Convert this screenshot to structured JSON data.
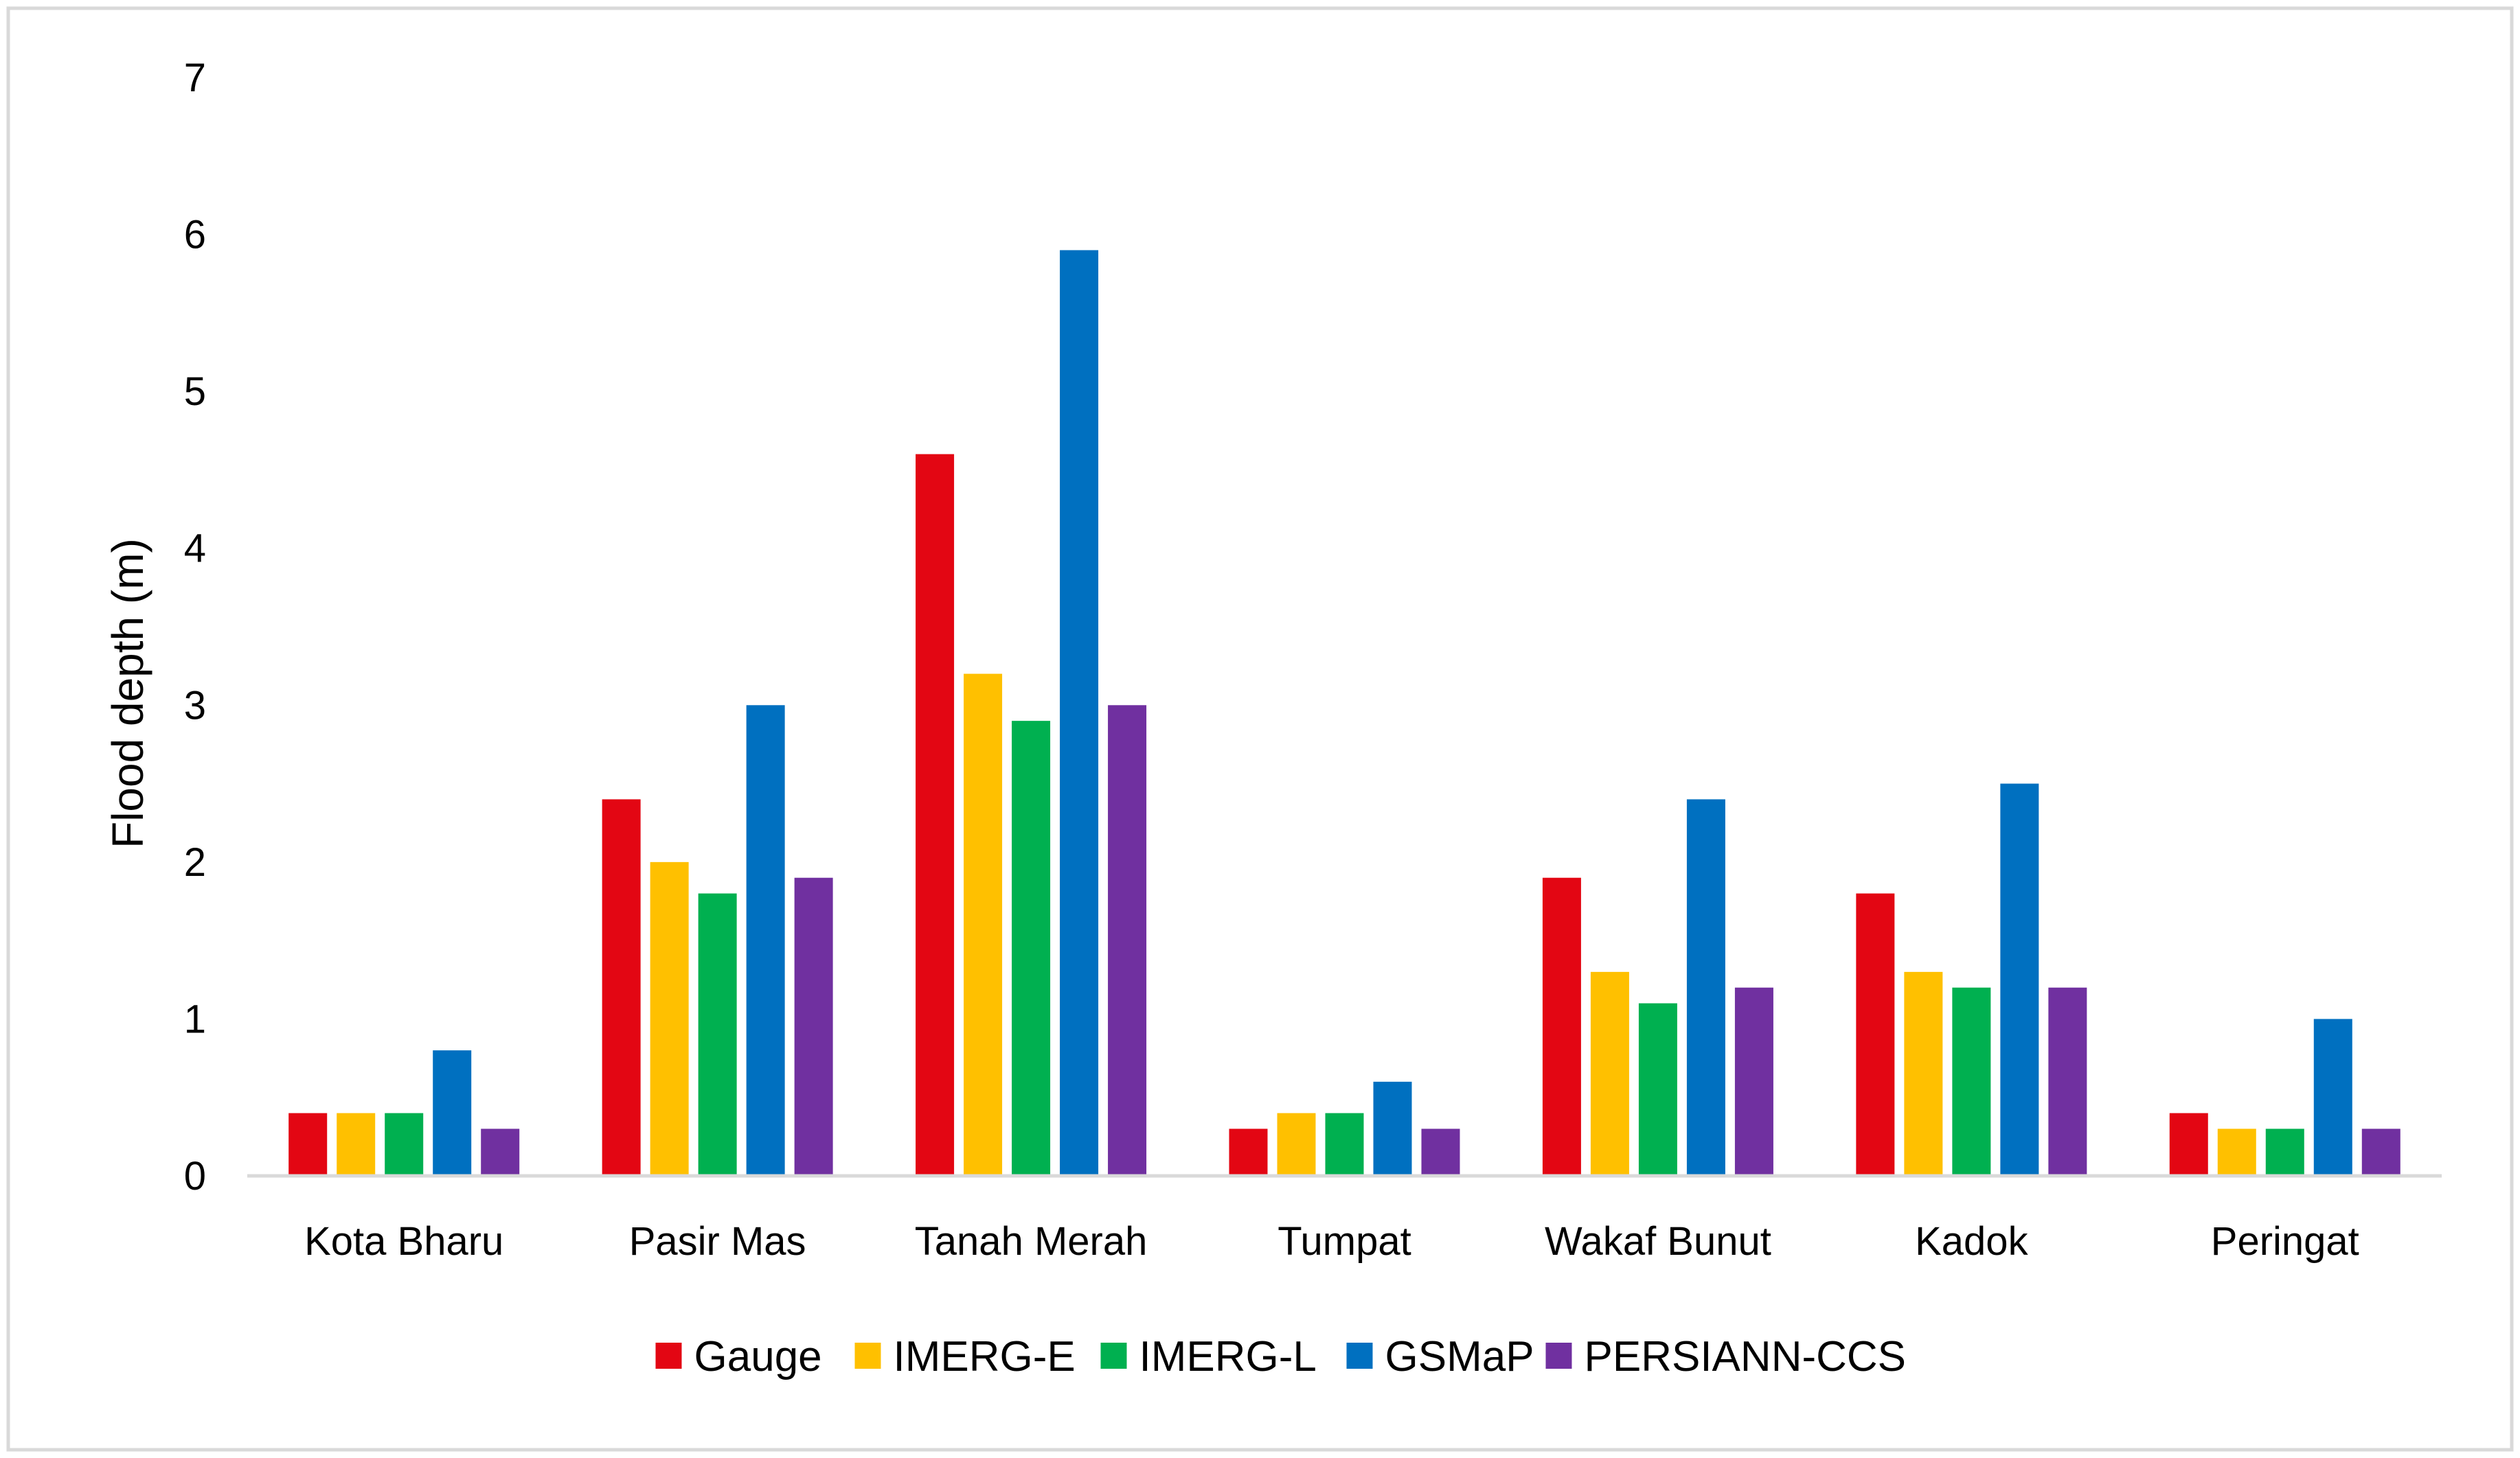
{
  "chart_data": {
    "type": "bar",
    "title": "",
    "xlabel": "",
    "ylabel": "Flood depth (m)",
    "ylim": [
      0,
      7
    ],
    "yticks": [
      "0",
      "1",
      "2",
      "3",
      "4",
      "5",
      "6",
      "7"
    ],
    "grid": false,
    "legend_position": "bottom",
    "categories": [
      "Kota Bharu",
      "Pasir Mas",
      "Tanah Merah",
      "Tumpat",
      "Wakaf Bunut",
      "Kadok",
      "Peringat"
    ],
    "series": [
      {
        "name": "Gauge",
        "color": "#e30613",
        "values": [
          0.4,
          2.4,
          4.6,
          0.3,
          1.9,
          1.8,
          0.4
        ]
      },
      {
        "name": "IMERG-E",
        "color": "#ffc000",
        "values": [
          0.4,
          2.0,
          3.2,
          0.4,
          1.3,
          1.3,
          0.3
        ]
      },
      {
        "name": "IMERG-L",
        "color": "#00b050",
        "values": [
          0.4,
          1.8,
          2.9,
          0.4,
          1.1,
          1.2,
          0.3
        ]
      },
      {
        "name": "GSMaP",
        "color": "#0070c0",
        "values": [
          0.8,
          3.0,
          5.9,
          0.6,
          2.4,
          2.5,
          1.0
        ]
      },
      {
        "name": "PERSIANN-CCS",
        "color": "#7030a0",
        "values": [
          0.3,
          1.9,
          3.0,
          0.3,
          1.2,
          1.2,
          0.3
        ]
      }
    ]
  }
}
